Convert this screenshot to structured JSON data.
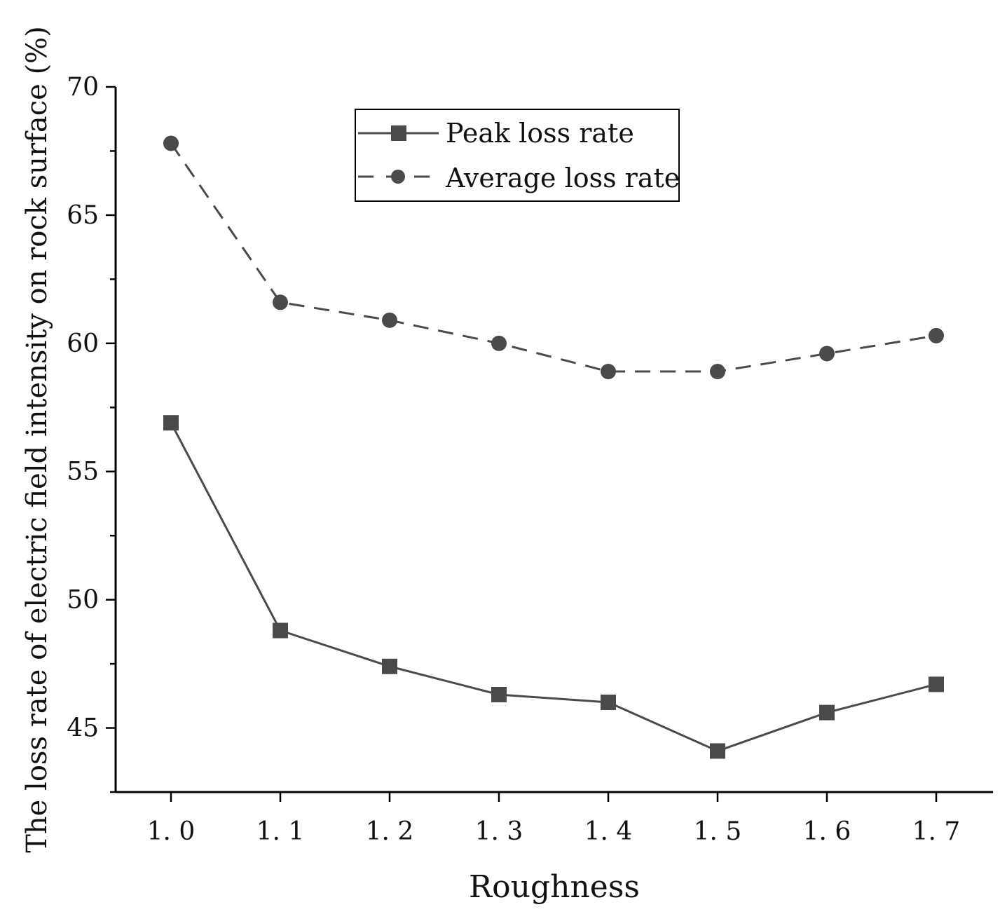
{
  "chart_data": {
    "type": "line",
    "title": "",
    "xlabel": "Roughness",
    "ylabel": "The loss rate of electric field intensity on rock surface (%)",
    "x": [
      1.0,
      1.1,
      1.2,
      1.3,
      1.4,
      1.5,
      1.6,
      1.7
    ],
    "x_tick_labels": [
      "1. 0",
      "1. 1",
      "1. 2",
      "1. 3",
      "1. 4",
      "1. 5",
      "1. 6",
      "1. 7"
    ],
    "y_ticks": [
      45,
      50,
      55,
      60,
      65,
      70
    ],
    "y_tick_labels": [
      "45",
      "50",
      "55",
      "60",
      "65",
      "70"
    ],
    "xlim": [
      0.95,
      1.75
    ],
    "ylim": [
      42.5,
      70
    ],
    "grid": false,
    "legend_position": "top-center",
    "series": [
      {
        "name": "Peak loss rate",
        "style": "solid",
        "marker": "square",
        "values": [
          56.9,
          48.8,
          47.4,
          46.3,
          46.0,
          44.1,
          45.6,
          46.7
        ]
      },
      {
        "name": "Average loss rate",
        "style": "dashed",
        "marker": "circle",
        "values": [
          67.8,
          61.6,
          60.9,
          60.0,
          58.9,
          58.9,
          59.6,
          60.3
        ]
      }
    ]
  }
}
